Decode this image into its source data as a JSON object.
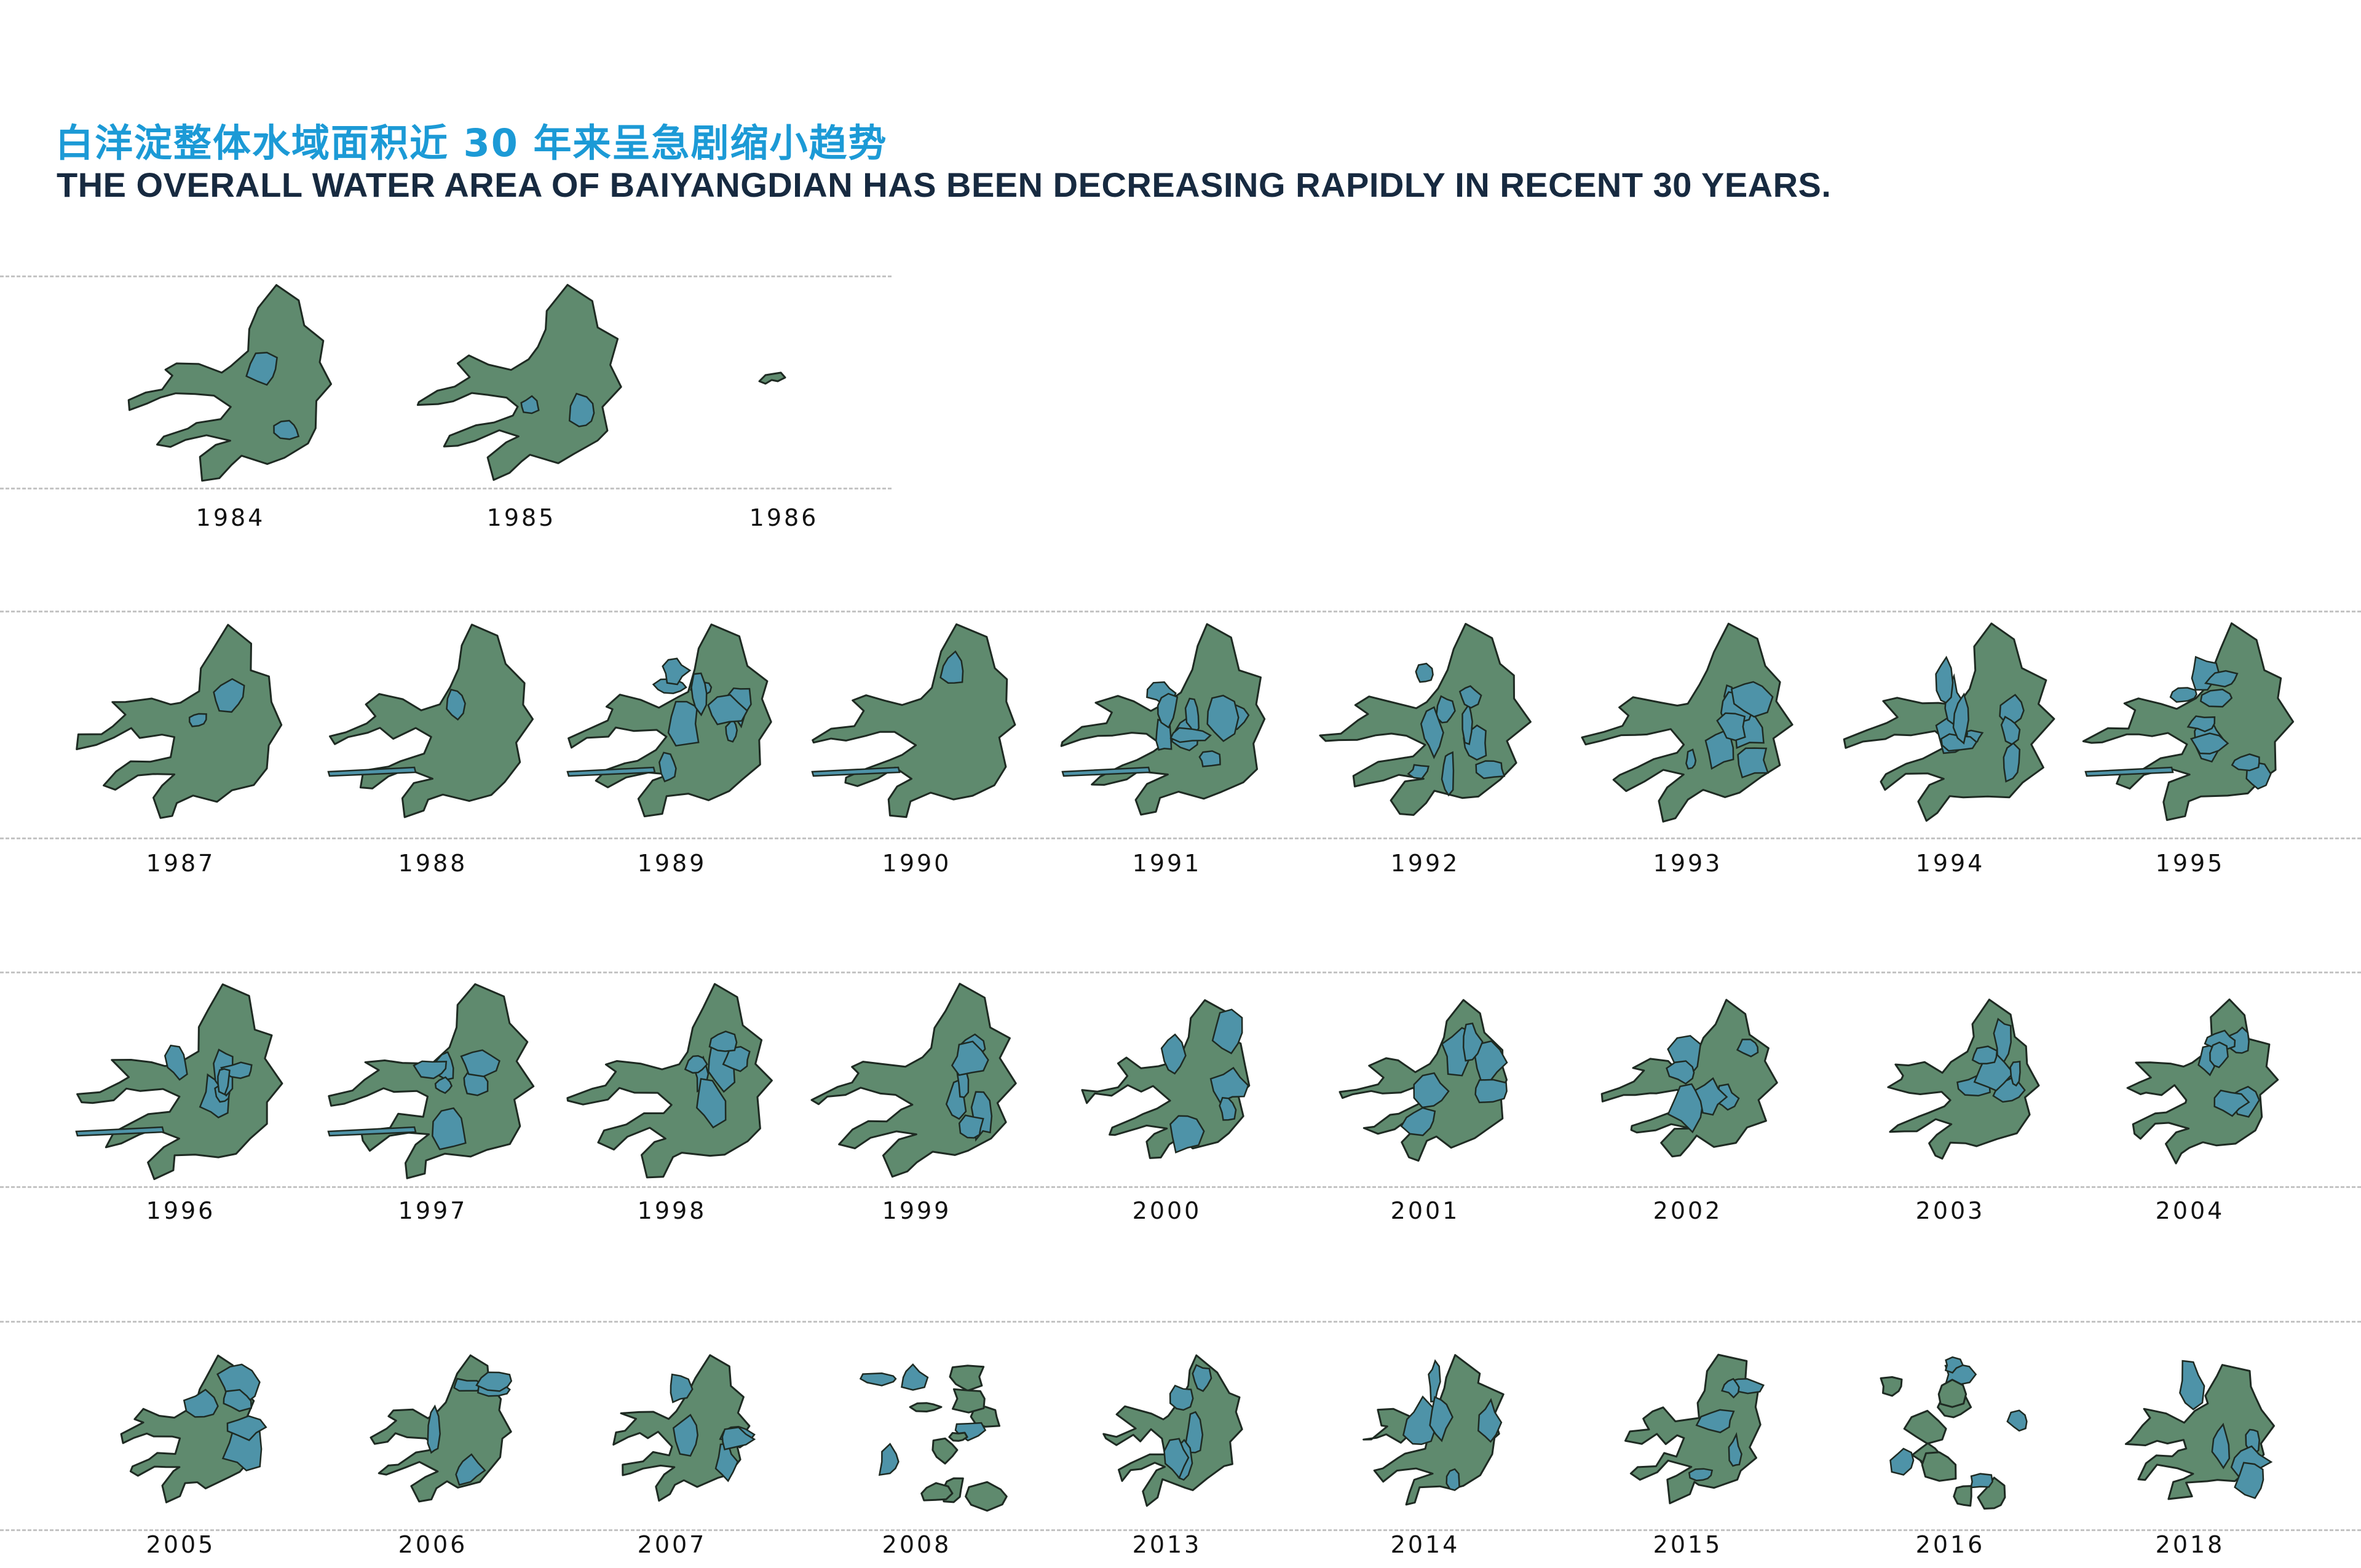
{
  "title_cn": "白洋淀整体水域面积近 30 年来呈急剧缩小趋势",
  "title_en": "THE OVERALL WATER AREA OF BAIYANGDIAN HAS BEEN DECREASING RAPIDLY IN  RECENT 30 YEARS.",
  "colors": {
    "land": "#5f8a6e",
    "water": "#4e93a8",
    "outline": "#1e2a22",
    "title_cn": "#1c9ad6",
    "title_en": "#172a40",
    "rule": "#c4c4c4"
  },
  "rows": [
    {
      "years": [
        "1984",
        "1985",
        "1986"
      ]
    },
    {
      "years": [
        "1987",
        "1988",
        "1989",
        "1990",
        "1991",
        "1992",
        "1993",
        "1994",
        "1995"
      ]
    },
    {
      "years": [
        "1996",
        "1997",
        "1998",
        "1999",
        "2000",
        "2001",
        "2002",
        "2003",
        "2004"
      ]
    },
    {
      "years": [
        "2005",
        "2006",
        "2007",
        "2008",
        "2013",
        "2014",
        "2015",
        "2016",
        "2018"
      ]
    }
  ]
}
